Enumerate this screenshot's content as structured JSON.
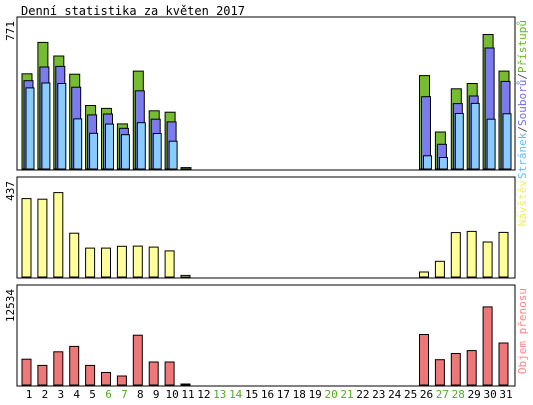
{
  "chart_data": {
    "type": "bar",
    "title": "Denní statistika za květen 2017",
    "categories": [
      "1",
      "2",
      "3",
      "4",
      "5",
      "6",
      "7",
      "8",
      "9",
      "10",
      "11",
      "12",
      "13",
      "14",
      "15",
      "16",
      "17",
      "18",
      "19",
      "20",
      "21",
      "22",
      "23",
      "24",
      "25",
      "26",
      "27",
      "28",
      "29",
      "30",
      "31"
    ],
    "weekend_days": [
      "6",
      "7",
      "13",
      "14",
      "20",
      "21",
      "27",
      "28"
    ],
    "panels": [
      {
        "id": "pages",
        "ymax_label": "771",
        "ylim": [
          0,
          771
        ],
        "legend": [
          "Stránek",
          "/",
          "Souborů",
          "/",
          "Přístupů"
        ],
        "legend_colors": [
          "#66bbff",
          "#555555",
          "#7070ee",
          "#555555",
          "#66bb22"
        ],
        "series": [
          {
            "name": "Přístupů",
            "color": "#77bb33",
            "values": [
              528,
              702,
              627,
              526,
              352,
              336,
              250,
              543,
              323,
              315,
              8,
              0,
              0,
              0,
              0,
              0,
              0,
              0,
              0,
              0,
              0,
              0,
              0,
              0,
              0,
              518,
              205,
              445,
              474,
              746,
              543
            ]
          },
          {
            "name": "Souborů",
            "color": "#7b7bee",
            "values": [
              490,
              566,
              569,
              454,
              300,
              305,
              226,
              434,
              276,
              261,
              0,
              0,
              0,
              0,
              0,
              0,
              0,
              0,
              0,
              0,
              0,
              0,
              0,
              0,
              0,
              401,
              137,
              363,
              405,
              671,
              486
            ]
          },
          {
            "name": "Stránek",
            "color": "#88ccff",
            "values": [
              450,
              477,
              474,
              278,
              198,
              249,
              190,
              257,
              197,
              154,
              0,
              0,
              0,
              0,
              0,
              0,
              0,
              0,
              0,
              0,
              0,
              0,
              0,
              0,
              0,
              73,
              64,
              308,
              364,
              276,
              306
            ]
          }
        ]
      },
      {
        "id": "visits",
        "ymax_label": "437",
        "ylim": [
          0,
          437
        ],
        "legend": [
          "Návštěv"
        ],
        "legend_colors": [
          "#eeee66"
        ],
        "series": [
          {
            "name": "Návštěv",
            "color": "#ffff99",
            "values": [
              394,
              391,
              424,
              220,
              145,
              145,
              154,
              155,
              150,
              131,
              8,
              0,
              0,
              0,
              0,
              0,
              0,
              0,
              0,
              0,
              0,
              0,
              0,
              0,
              0,
              25,
              79,
              223,
              229,
              176,
              224
            ]
          }
        ]
      },
      {
        "id": "volume",
        "ymax_label": "12534",
        "ylim": [
          0,
          12534
        ],
        "legend": [
          "Objem přenosu"
        ],
        "legend_colors": [
          "#ff8888"
        ],
        "series": [
          {
            "name": "Objem přenosu",
            "color": "#ee7777",
            "values": [
              3710,
              2827,
              4780,
              5557,
              2821,
              1796,
              1290,
              7181,
              3310,
              3310,
              134,
              0,
              0,
              0,
              0,
              0,
              0,
              0,
              0,
              0,
              0,
              0,
              0,
              0,
              0,
              7270,
              3640,
              4540,
              4960,
              11250,
              6049
            ]
          }
        ]
      }
    ]
  }
}
